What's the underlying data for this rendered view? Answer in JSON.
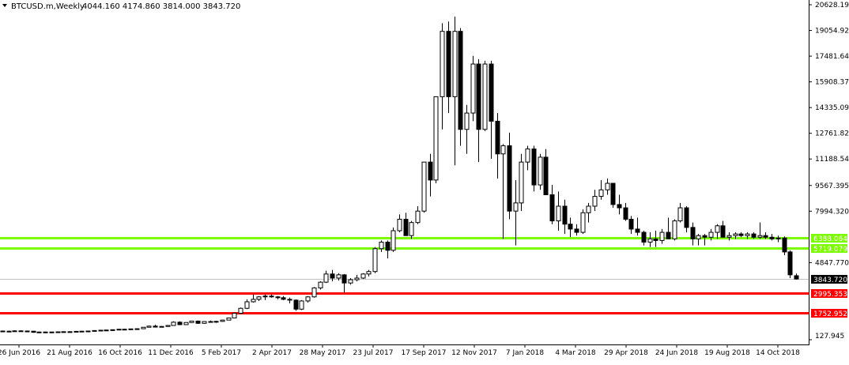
{
  "header": {
    "symbol": "BTCUSD.m,Weekly",
    "ohlc": "4044.160 4174.860 3814.000 3843.720"
  },
  "colors": {
    "background": "#ffffff",
    "candle": "#000000",
    "support_green": "#7CFC00",
    "support_red": "#FF0000",
    "current_price_box": "#000000"
  },
  "chart_data": {
    "type": "candlestick",
    "timeframe": "Weekly",
    "y_axis_ticks": [
      20628.195,
      19054.92,
      17481.645,
      15908.37,
      14335.095,
      12761.82,
      11188.545,
      9567.395,
      7994.32,
      4847.77,
      127.945
    ],
    "x_axis_ticks": [
      "26 Jun 2016",
      "21 Aug 2016",
      "16 Oct 2016",
      "11 Dec 2016",
      "5 Feb 2017",
      "2 Apr 2017",
      "28 May 2017",
      "23 Jul 2017",
      "17 Sep 2017",
      "12 Nov 2017",
      "7 Jan 2018",
      "4 Mar 2018",
      "29 Apr 2018",
      "24 Jun 2018",
      "19 Aug 2018",
      "14 Oct 2018"
    ],
    "ylim": [
      127.945,
      20628.195
    ],
    "horizontal_levels": [
      {
        "value": 6388.064,
        "label": "6388.064",
        "color": "green"
      },
      {
        "value": 5719.079,
        "label": "5719.079",
        "color": "green"
      },
      {
        "value": 2995.353,
        "label": "2995.353",
        "color": "red"
      },
      {
        "value": 1752.952,
        "label": "1752.952",
        "color": "red"
      }
    ],
    "current_price": {
      "value": 3843.72,
      "label": "3843.720"
    },
    "candles": [
      {
        "o": 660,
        "h": 690,
        "l": 600,
        "c": 640
      },
      {
        "o": 640,
        "h": 680,
        "l": 600,
        "c": 650
      },
      {
        "o": 650,
        "h": 700,
        "l": 620,
        "c": 670
      },
      {
        "o": 670,
        "h": 700,
        "l": 630,
        "c": 660
      },
      {
        "o": 660,
        "h": 690,
        "l": 620,
        "c": 650
      },
      {
        "o": 650,
        "h": 660,
        "l": 560,
        "c": 580
      },
      {
        "o": 580,
        "h": 620,
        "l": 560,
        "c": 600
      },
      {
        "o": 600,
        "h": 620,
        "l": 570,
        "c": 590
      },
      {
        "o": 590,
        "h": 610,
        "l": 560,
        "c": 600
      },
      {
        "o": 600,
        "h": 620,
        "l": 580,
        "c": 610
      },
      {
        "o": 610,
        "h": 630,
        "l": 590,
        "c": 620
      },
      {
        "o": 620,
        "h": 640,
        "l": 600,
        "c": 610
      },
      {
        "o": 610,
        "h": 650,
        "l": 600,
        "c": 640
      },
      {
        "o": 640,
        "h": 660,
        "l": 620,
        "c": 650
      },
      {
        "o": 650,
        "h": 670,
        "l": 630,
        "c": 660
      },
      {
        "o": 660,
        "h": 700,
        "l": 640,
        "c": 690
      },
      {
        "o": 690,
        "h": 720,
        "l": 670,
        "c": 710
      },
      {
        "o": 710,
        "h": 740,
        "l": 690,
        "c": 720
      },
      {
        "o": 720,
        "h": 760,
        "l": 700,
        "c": 740
      },
      {
        "o": 740,
        "h": 780,
        "l": 720,
        "c": 770
      },
      {
        "o": 770,
        "h": 790,
        "l": 740,
        "c": 760
      },
      {
        "o": 760,
        "h": 800,
        "l": 740,
        "c": 790
      },
      {
        "o": 790,
        "h": 820,
        "l": 770,
        "c": 800
      },
      {
        "o": 800,
        "h": 900,
        "l": 790,
        "c": 890
      },
      {
        "o": 890,
        "h": 1000,
        "l": 880,
        "c": 960
      },
      {
        "o": 960,
        "h": 1050,
        "l": 880,
        "c": 900
      },
      {
        "o": 900,
        "h": 960,
        "l": 880,
        "c": 940
      },
      {
        "o": 940,
        "h": 1020,
        "l": 920,
        "c": 1000
      },
      {
        "o": 1000,
        "h": 1250,
        "l": 990,
        "c": 1200
      },
      {
        "o": 1200,
        "h": 1250,
        "l": 1020,
        "c": 1050
      },
      {
        "o": 1050,
        "h": 1200,
        "l": 1040,
        "c": 1180
      },
      {
        "o": 1180,
        "h": 1290,
        "l": 1150,
        "c": 1270
      },
      {
        "o": 1270,
        "h": 1300,
        "l": 1100,
        "c": 1130
      },
      {
        "o": 1130,
        "h": 1260,
        "l": 1100,
        "c": 1240
      },
      {
        "o": 1240,
        "h": 1300,
        "l": 1180,
        "c": 1210
      },
      {
        "o": 1210,
        "h": 1280,
        "l": 1160,
        "c": 1250
      },
      {
        "o": 1250,
        "h": 1350,
        "l": 1230,
        "c": 1330
      },
      {
        "o": 1330,
        "h": 1480,
        "l": 1320,
        "c": 1460
      },
      {
        "o": 1460,
        "h": 1780,
        "l": 1450,
        "c": 1750
      },
      {
        "o": 1750,
        "h": 2100,
        "l": 1700,
        "c": 2050
      },
      {
        "o": 2050,
        "h": 2600,
        "l": 2000,
        "c": 2450
      },
      {
        "o": 2450,
        "h": 2900,
        "l": 2400,
        "c": 2600
      },
      {
        "o": 2600,
        "h": 2800,
        "l": 2500,
        "c": 2750
      },
      {
        "o": 2750,
        "h": 2900,
        "l": 2550,
        "c": 2800
      },
      {
        "o": 2800,
        "h": 2900,
        "l": 2700,
        "c": 2750
      },
      {
        "o": 2750,
        "h": 2800,
        "l": 2600,
        "c": 2700
      },
      {
        "o": 2700,
        "h": 2800,
        "l": 2550,
        "c": 2600
      },
      {
        "o": 2600,
        "h": 2700,
        "l": 2350,
        "c": 2550
      },
      {
        "o": 2550,
        "h": 2600,
        "l": 1900,
        "c": 2000
      },
      {
        "o": 2000,
        "h": 2550,
        "l": 1950,
        "c": 2500
      },
      {
        "o": 2500,
        "h": 2800,
        "l": 2400,
        "c": 2750
      },
      {
        "o": 2750,
        "h": 3350,
        "l": 2700,
        "c": 3300
      },
      {
        "o": 3300,
        "h": 3700,
        "l": 3200,
        "c": 3650
      },
      {
        "o": 3650,
        "h": 4350,
        "l": 3600,
        "c": 4150
      },
      {
        "o": 4150,
        "h": 4400,
        "l": 3700,
        "c": 3900
      },
      {
        "o": 3900,
        "h": 4200,
        "l": 3750,
        "c": 4100
      },
      {
        "o": 4100,
        "h": 4150,
        "l": 2980,
        "c": 3600
      },
      {
        "o": 3600,
        "h": 3900,
        "l": 3500,
        "c": 3800
      },
      {
        "o": 3800,
        "h": 4100,
        "l": 3700,
        "c": 3900
      },
      {
        "o": 3900,
        "h": 4200,
        "l": 3850,
        "c": 4150
      },
      {
        "o": 4150,
        "h": 4400,
        "l": 4000,
        "c": 4300
      },
      {
        "o": 4300,
        "h": 5800,
        "l": 4200,
        "c": 5700
      },
      {
        "o": 5700,
        "h": 6200,
        "l": 5500,
        "c": 6100
      },
      {
        "o": 6100,
        "h": 6200,
        "l": 5100,
        "c": 5600
      },
      {
        "o": 5600,
        "h": 7000,
        "l": 5500,
        "c": 6800
      },
      {
        "o": 6800,
        "h": 7800,
        "l": 6700,
        "c": 7500
      },
      {
        "o": 7500,
        "h": 7900,
        "l": 6500,
        "c": 6500
      },
      {
        "o": 6500,
        "h": 7400,
        "l": 6300,
        "c": 7300
      },
      {
        "o": 7300,
        "h": 8300,
        "l": 7200,
        "c": 8000
      },
      {
        "o": 8000,
        "h": 11000,
        "l": 7900,
        "c": 11000
      },
      {
        "o": 11000,
        "h": 11500,
        "l": 8900,
        "c": 9900
      },
      {
        "o": 9900,
        "h": 15000,
        "l": 9700,
        "c": 15000
      },
      {
        "o": 15000,
        "h": 19500,
        "l": 13000,
        "c": 19000
      },
      {
        "o": 19000,
        "h": 19600,
        "l": 14000,
        "c": 15000
      },
      {
        "o": 15000,
        "h": 19900,
        "l": 10800,
        "c": 19000
      },
      {
        "o": 19000,
        "h": 19200,
        "l": 12000,
        "c": 13000
      },
      {
        "o": 13000,
        "h": 14500,
        "l": 11500,
        "c": 14000
      },
      {
        "o": 14000,
        "h": 17500,
        "l": 13500,
        "c": 17000
      },
      {
        "o": 17000,
        "h": 17300,
        "l": 11000,
        "c": 13000
      },
      {
        "o": 13000,
        "h": 17200,
        "l": 12900,
        "c": 17000
      },
      {
        "o": 17000,
        "h": 17200,
        "l": 11200,
        "c": 13500
      },
      {
        "o": 13500,
        "h": 14000,
        "l": 10000,
        "c": 11500
      },
      {
        "o": 11500,
        "h": 12100,
        "l": 6300,
        "c": 12000
      },
      {
        "o": 12000,
        "h": 12800,
        "l": 7500,
        "c": 8000
      },
      {
        "o": 8000,
        "h": 9900,
        "l": 5900,
        "c": 8500
      },
      {
        "o": 8500,
        "h": 11500,
        "l": 8000,
        "c": 11000
      },
      {
        "o": 11000,
        "h": 12000,
        "l": 10500,
        "c": 11800
      },
      {
        "o": 11800,
        "h": 12000,
        "l": 9200,
        "c": 9600
      },
      {
        "o": 9600,
        "h": 11500,
        "l": 9300,
        "c": 11300
      },
      {
        "o": 11300,
        "h": 11800,
        "l": 9000,
        "c": 9000
      },
      {
        "o": 9000,
        "h": 9600,
        "l": 7200,
        "c": 7400
      },
      {
        "o": 7400,
        "h": 9200,
        "l": 6800,
        "c": 8300
      },
      {
        "o": 8300,
        "h": 8700,
        "l": 6600,
        "c": 7200
      },
      {
        "o": 7200,
        "h": 7600,
        "l": 6400,
        "c": 6900
      },
      {
        "o": 6900,
        "h": 7200,
        "l": 6500,
        "c": 6700
      },
      {
        "o": 6700,
        "h": 8100,
        "l": 6600,
        "c": 7900
      },
      {
        "o": 7900,
        "h": 8500,
        "l": 7300,
        "c": 8300
      },
      {
        "o": 8300,
        "h": 9300,
        "l": 8000,
        "c": 8900
      },
      {
        "o": 8900,
        "h": 9900,
        "l": 8700,
        "c": 9300
      },
      {
        "o": 9300,
        "h": 10000,
        "l": 9000,
        "c": 9700
      },
      {
        "o": 9700,
        "h": 9700,
        "l": 8200,
        "c": 8400
      },
      {
        "o": 8400,
        "h": 9000,
        "l": 7800,
        "c": 8200
      },
      {
        "o": 8200,
        "h": 8500,
        "l": 7400,
        "c": 7500
      },
      {
        "o": 7500,
        "h": 7700,
        "l": 6600,
        "c": 6900
      },
      {
        "o": 6900,
        "h": 7600,
        "l": 6500,
        "c": 6700
      },
      {
        "o": 6700,
        "h": 6800,
        "l": 5900,
        "c": 6100
      },
      {
        "o": 6100,
        "h": 6700,
        "l": 5800,
        "c": 6300
      },
      {
        "o": 6300,
        "h": 6800,
        "l": 5800,
        "c": 6200
      },
      {
        "o": 6200,
        "h": 6900,
        "l": 6000,
        "c": 6700
      },
      {
        "o": 6700,
        "h": 7600,
        "l": 6400,
        "c": 6300
      },
      {
        "o": 6300,
        "h": 7500,
        "l": 6200,
        "c": 7400
      },
      {
        "o": 7400,
        "h": 8500,
        "l": 7300,
        "c": 8200
      },
      {
        "o": 8200,
        "h": 8300,
        "l": 6700,
        "c": 7000
      },
      {
        "o": 7000,
        "h": 7300,
        "l": 5900,
        "c": 6300
      },
      {
        "o": 6300,
        "h": 6600,
        "l": 5900,
        "c": 6500
      },
      {
        "o": 6500,
        "h": 6600,
        "l": 5900,
        "c": 6400
      },
      {
        "o": 6400,
        "h": 6900,
        "l": 6200,
        "c": 6700
      },
      {
        "o": 6700,
        "h": 7200,
        "l": 6300,
        "c": 7100
      },
      {
        "o": 7100,
        "h": 7400,
        "l": 6400,
        "c": 6400
      },
      {
        "o": 6400,
        "h": 6700,
        "l": 6200,
        "c": 6500
      },
      {
        "o": 6500,
        "h": 6700,
        "l": 6300,
        "c": 6600
      },
      {
        "o": 6600,
        "h": 6700,
        "l": 6400,
        "c": 6500
      },
      {
        "o": 6500,
        "h": 6700,
        "l": 6300,
        "c": 6600
      },
      {
        "o": 6600,
        "h": 6700,
        "l": 6300,
        "c": 6400
      },
      {
        "o": 6400,
        "h": 7300,
        "l": 6300,
        "c": 6500
      },
      {
        "o": 6500,
        "h": 6700,
        "l": 6300,
        "c": 6400
      },
      {
        "o": 6400,
        "h": 6600,
        "l": 6200,
        "c": 6300
      },
      {
        "o": 6300,
        "h": 6500,
        "l": 6100,
        "c": 6350
      },
      {
        "o": 6350,
        "h": 6450,
        "l": 5300,
        "c": 5500
      },
      {
        "o": 5500,
        "h": 5600,
        "l": 3900,
        "c": 4100
      },
      {
        "o": 4044.16,
        "h": 4174.86,
        "l": 3814.0,
        "c": 3843.72
      }
    ]
  }
}
